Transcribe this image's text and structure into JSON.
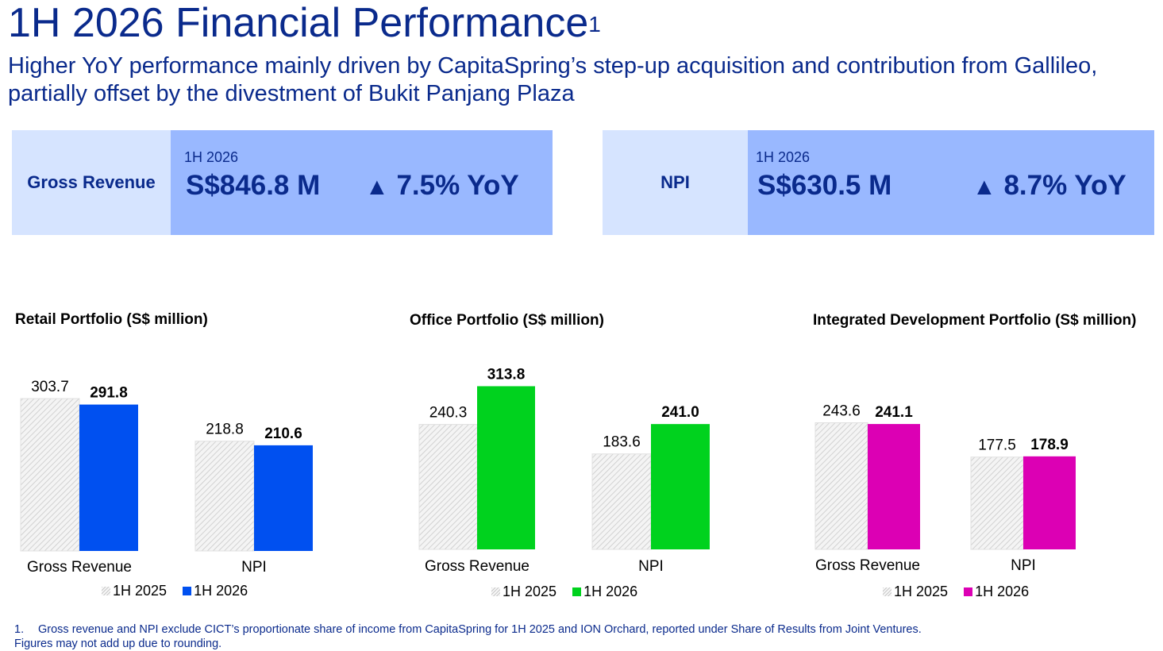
{
  "title": "1H 2026 Financial Performance",
  "title_sup": "1",
  "subtitle": "Higher YoY performance mainly driven by CapitaSpring’s step-up acquisition and contribution from Gallileo, partially offset by the divestment of Bukit Panjang Plaza",
  "kpis": [
    {
      "label": "Gross Revenue",
      "period": "1H 2026",
      "amount": "S$846.8 M",
      "yoy_arrow": "▲",
      "yoy": "7.5% YoY"
    },
    {
      "label": "NPI",
      "period": "1H 2026",
      "amount": "S$630.5 M",
      "yoy_arrow": "▲",
      "yoy": "8.7% YoY"
    }
  ],
  "chart_data": [
    {
      "type": "bar",
      "title": "Retail Portfolio (S$ million)",
      "categories": [
        "Gross Revenue",
        "NPI"
      ],
      "series": [
        {
          "name": "1H 2025",
          "values": [
            303.7,
            218.8
          ],
          "color": "#e4e4e4",
          "pattern": "hatch"
        },
        {
          "name": "1H 2026",
          "values": [
            291.8,
            210.6
          ],
          "color": "#0050f0"
        }
      ],
      "value_labels": [
        [
          "303.7",
          "218.8"
        ],
        [
          "291.8",
          "210.6"
        ]
      ],
      "legend_position": "bottom"
    },
    {
      "type": "bar",
      "title": "Office Portfolio (S$ million)",
      "categories": [
        "Gross Revenue",
        "NPI"
      ],
      "series": [
        {
          "name": "1H 2025",
          "values": [
            240.3,
            183.6
          ],
          "color": "#e4e4e4",
          "pattern": "hatch"
        },
        {
          "name": "1H 2026",
          "values": [
            313.8,
            241.0
          ],
          "color": "#00d21e"
        }
      ],
      "value_labels": [
        [
          "240.3",
          "183.6"
        ],
        [
          "313.8",
          "241.0"
        ]
      ],
      "legend_position": "bottom"
    },
    {
      "type": "bar",
      "title": "Integrated Development Portfolio (S$ million)",
      "categories": [
        "Gross Revenue",
        "NPI"
      ],
      "series": [
        {
          "name": "1H 2025",
          "values": [
            243.6,
            177.5
          ],
          "color": "#e4e4e4",
          "pattern": "hatch"
        },
        {
          "name": "1H 2026",
          "values": [
            241.1,
            178.9
          ],
          "color": "#dc00b4"
        }
      ],
      "value_labels": [
        [
          "243.6",
          "177.5"
        ],
        [
          "241.1",
          "178.9"
        ]
      ],
      "legend_position": "bottom"
    }
  ],
  "footnote": {
    "number": "1.",
    "line1": "Gross revenue and NPI exclude CICT’s proportionate share of income from CapitaSpring for 1H 2025 and ION Orchard, reported under Share of Results from Joint Ventures.",
    "line2": "Figures may not add up due to rounding."
  }
}
